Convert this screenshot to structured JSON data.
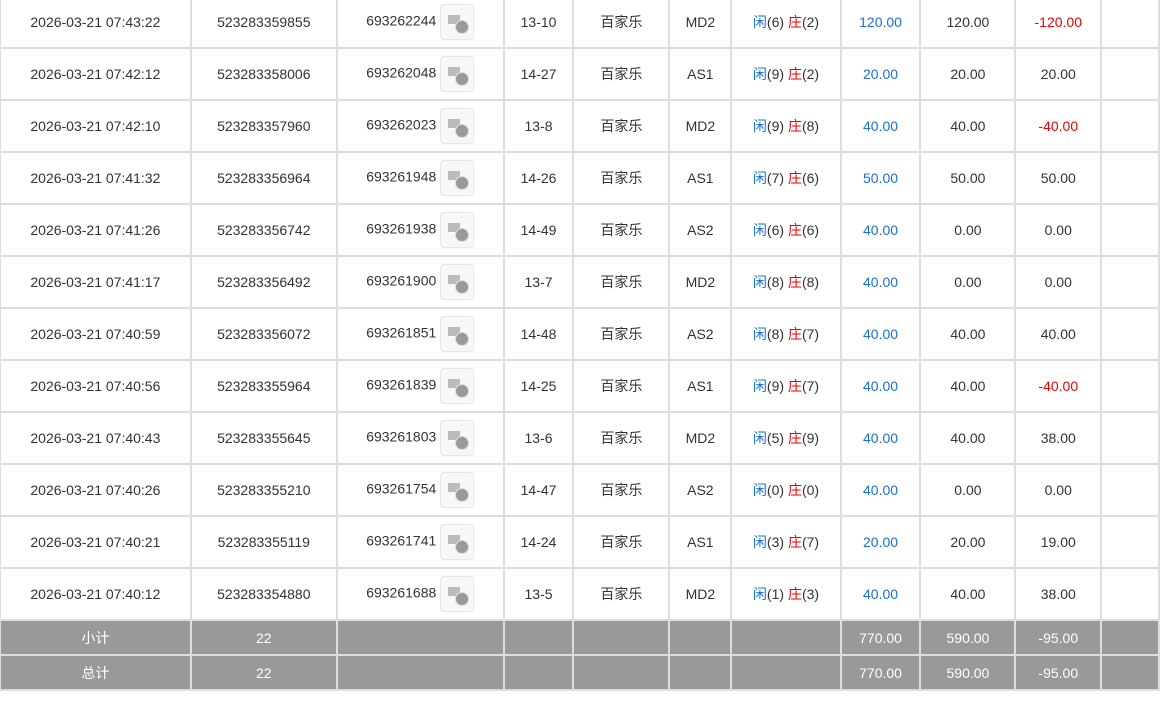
{
  "labels": {
    "xian": "闲",
    "zhuang": "庄"
  },
  "rows": [
    {
      "time": "2026-03-21 07:43:22",
      "order": "523283359855",
      "round": "693262244",
      "table": "13-10",
      "game": "百家乐",
      "room": "MD2",
      "p": "6",
      "b": "2",
      "bet": "120.00",
      "valid": "120.00",
      "win": "-120.00",
      "neg": true
    },
    {
      "time": "2026-03-21 07:42:12",
      "order": "523283358006",
      "round": "693262048",
      "table": "14-27",
      "game": "百家乐",
      "room": "AS1",
      "p": "9",
      "b": "2",
      "bet": "20.00",
      "valid": "20.00",
      "win": "20.00",
      "neg": false
    },
    {
      "time": "2026-03-21 07:42:10",
      "order": "523283357960",
      "round": "693262023",
      "table": "13-8",
      "game": "百家乐",
      "room": "MD2",
      "p": "9",
      "b": "8",
      "bet": "40.00",
      "valid": "40.00",
      "win": "-40.00",
      "neg": true
    },
    {
      "time": "2026-03-21 07:41:32",
      "order": "523283356964",
      "round": "693261948",
      "table": "14-26",
      "game": "百家乐",
      "room": "AS1",
      "p": "7",
      "b": "6",
      "bet": "50.00",
      "valid": "50.00",
      "win": "50.00",
      "neg": false
    },
    {
      "time": "2026-03-21 07:41:26",
      "order": "523283356742",
      "round": "693261938",
      "table": "14-49",
      "game": "百家乐",
      "room": "AS2",
      "p": "6",
      "b": "6",
      "bet": "40.00",
      "valid": "0.00",
      "win": "0.00",
      "neg": false
    },
    {
      "time": "2026-03-21 07:41:17",
      "order": "523283356492",
      "round": "693261900",
      "table": "13-7",
      "game": "百家乐",
      "room": "MD2",
      "p": "8",
      "b": "8",
      "bet": "40.00",
      "valid": "0.00",
      "win": "0.00",
      "neg": false
    },
    {
      "time": "2026-03-21 07:40:59",
      "order": "523283356072",
      "round": "693261851",
      "table": "14-48",
      "game": "百家乐",
      "room": "AS2",
      "p": "8",
      "b": "7",
      "bet": "40.00",
      "valid": "40.00",
      "win": "40.00",
      "neg": false
    },
    {
      "time": "2026-03-21 07:40:56",
      "order": "523283355964",
      "round": "693261839",
      "table": "14-25",
      "game": "百家乐",
      "room": "AS1",
      "p": "9",
      "b": "7",
      "bet": "40.00",
      "valid": "40.00",
      "win": "-40.00",
      "neg": true
    },
    {
      "time": "2026-03-21 07:40:43",
      "order": "523283355645",
      "round": "693261803",
      "table": "13-6",
      "game": "百家乐",
      "room": "MD2",
      "p": "5",
      "b": "9",
      "bet": "40.00",
      "valid": "40.00",
      "win": "38.00",
      "neg": false
    },
    {
      "time": "2026-03-21 07:40:26",
      "order": "523283355210",
      "round": "693261754",
      "table": "14-47",
      "game": "百家乐",
      "room": "AS2",
      "p": "0",
      "b": "0",
      "bet": "40.00",
      "valid": "0.00",
      "win": "0.00",
      "neg": false
    },
    {
      "time": "2026-03-21 07:40:21",
      "order": "523283355119",
      "round": "693261741",
      "table": "14-24",
      "game": "百家乐",
      "room": "AS1",
      "p": "3",
      "b": "7",
      "bet": "20.00",
      "valid": "20.00",
      "win": "19.00",
      "neg": false
    },
    {
      "time": "2026-03-21 07:40:12",
      "order": "523283354880",
      "round": "693261688",
      "table": "13-5",
      "game": "百家乐",
      "room": "MD2",
      "p": "1",
      "b": "3",
      "bet": "40.00",
      "valid": "40.00",
      "win": "38.00",
      "neg": false
    }
  ],
  "summary": [
    {
      "label": "小计",
      "count": "22",
      "bet": "770.00",
      "valid": "590.00",
      "win": "-95.00"
    },
    {
      "label": "总计",
      "count": "22",
      "bet": "770.00",
      "valid": "590.00",
      "win": "-95.00"
    }
  ],
  "colors": {
    "player": "#1a6fd6",
    "banker": "#e00000",
    "summary_bg": "#999999"
  }
}
